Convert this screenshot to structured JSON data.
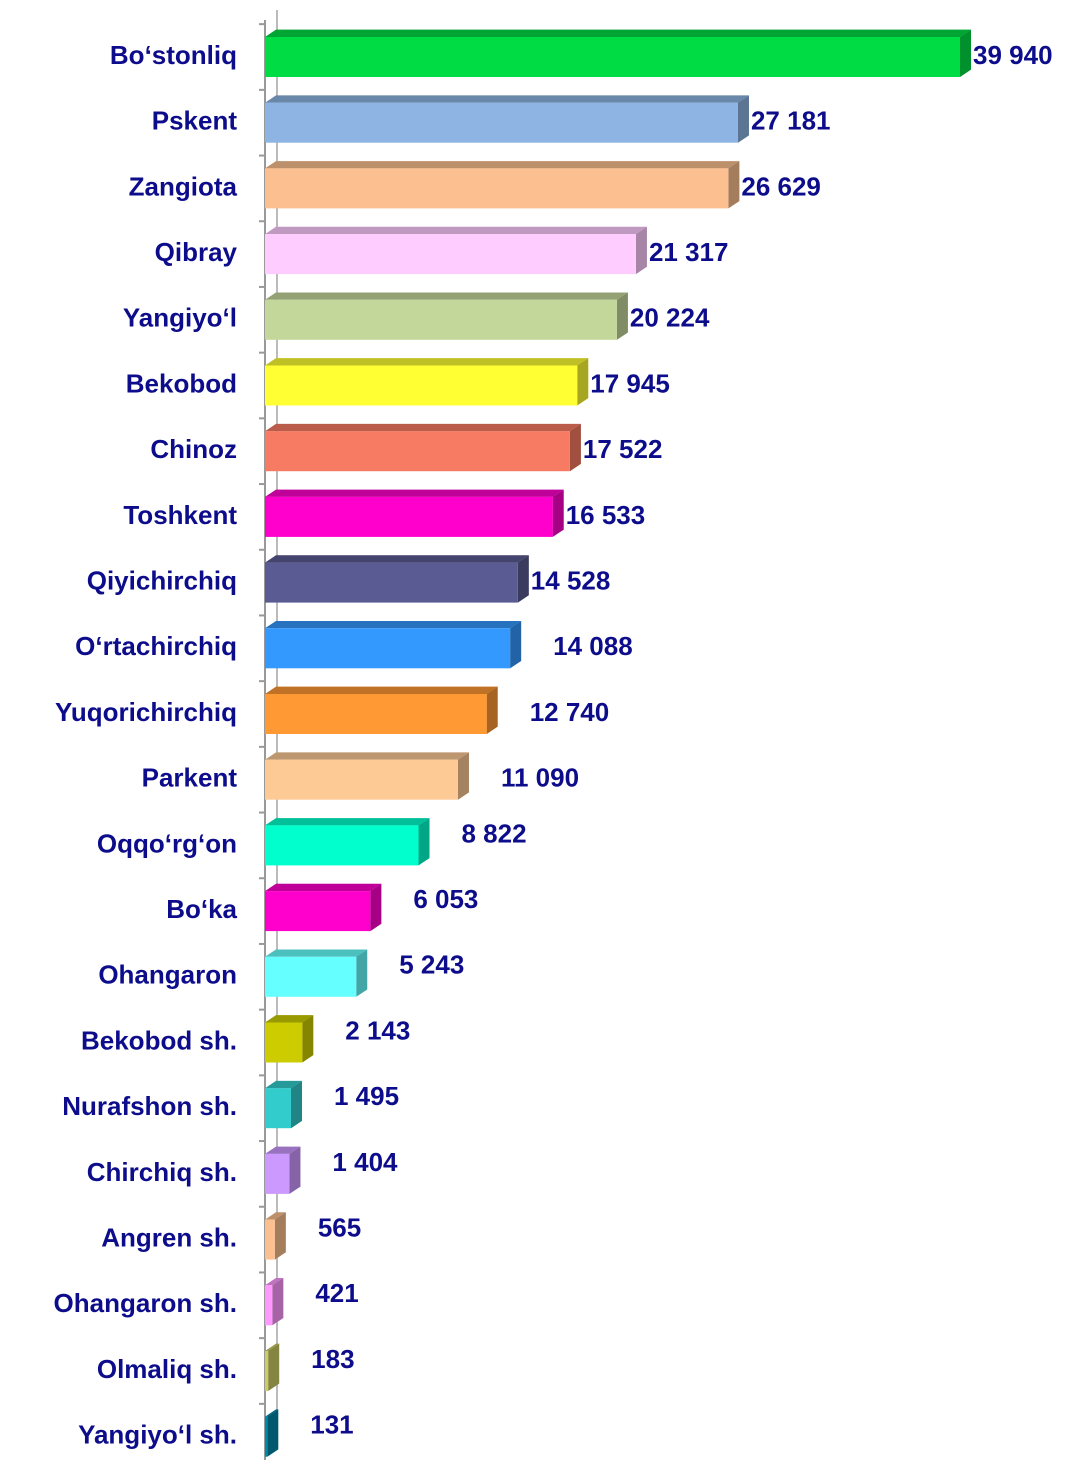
{
  "chart_data": {
    "type": "bar",
    "orientation": "horizontal",
    "categories": [
      "Bo‘stonliq",
      "Pskent",
      "Zangiota",
      "Qibray",
      "Yangiyo‘l",
      "Bekobod",
      "Chinoz",
      "Toshkent",
      "Qiyichirchiq",
      "O‘rtachirchiq",
      "Yuqorichirchiq",
      "Parkent",
      "Oqqo‘rg‘on",
      "Bo‘ka",
      "Ohangaron",
      "Bekobod sh.",
      "Nurafshon sh.",
      "Chirchiq sh.",
      "Angren sh.",
      "Ohangaron sh.",
      "Olmaliq sh.",
      "Yangiyo‘l sh."
    ],
    "values": [
      39940,
      27181,
      26629,
      21317,
      20224,
      17945,
      17522,
      16533,
      14528,
      14088,
      12740,
      11090,
      8822,
      6053,
      5243,
      2143,
      1495,
      1404,
      565,
      421,
      183,
      131
    ],
    "value_labels": [
      "39 940",
      "27 181",
      "26 629",
      "21 317",
      "20 224",
      "17 945",
      "17 522",
      "16 533",
      "14 528",
      "14 088",
      "12 740",
      "11 090",
      "8 822",
      "6 053",
      "5 243",
      "2 143",
      "1 495",
      "1 404",
      "565",
      "421",
      "183",
      "131"
    ],
    "colors": [
      "#00dd44",
      "#8db4e2",
      "#fcc090",
      "#ffccff",
      "#c4d79b",
      "#ffff33",
      "#f77b63",
      "#ff00cc",
      "#5b5b93",
      "#3399ff",
      "#ff9933",
      "#fdca96",
      "#00ffcc",
      "#ff00cc",
      "#66ffff",
      "#cccc00",
      "#33cccc",
      "#cc99ff",
      "#fcc090",
      "#ff99ff",
      "#cccc66",
      "#0088aa"
    ]
  }
}
